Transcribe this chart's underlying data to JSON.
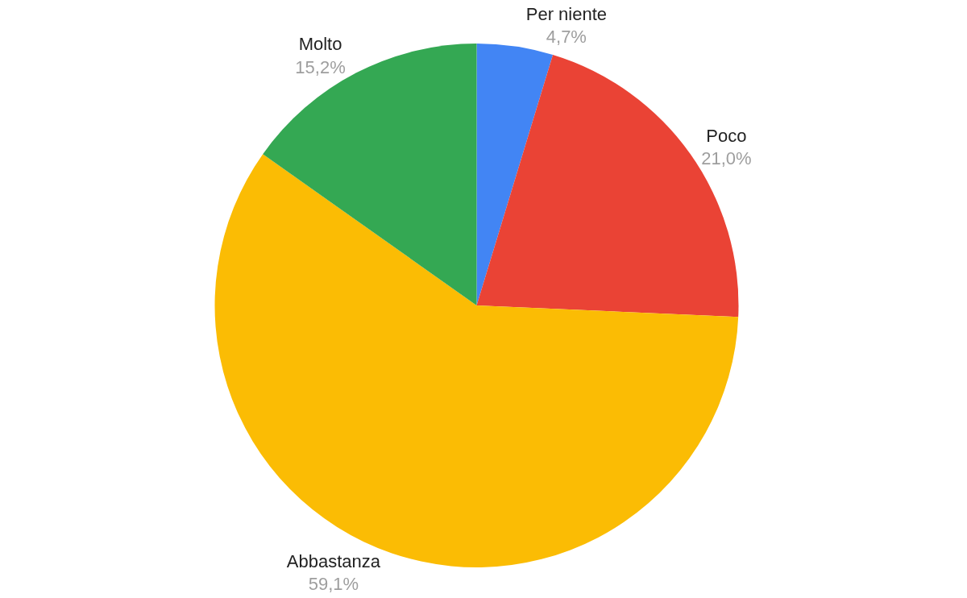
{
  "chart_data": {
    "type": "pie",
    "categories": [
      "Per niente",
      "Poco",
      "Abbastanza",
      "Molto"
    ],
    "values": [
      4.7,
      21.0,
      59.1,
      15.2
    ],
    "value_labels": [
      "4,7%",
      "21,0%",
      "59,1%",
      "15,2%"
    ],
    "colors": [
      "#4285f4",
      "#ea4335",
      "#fbbc04",
      "#34a853"
    ],
    "legend": false
  }
}
